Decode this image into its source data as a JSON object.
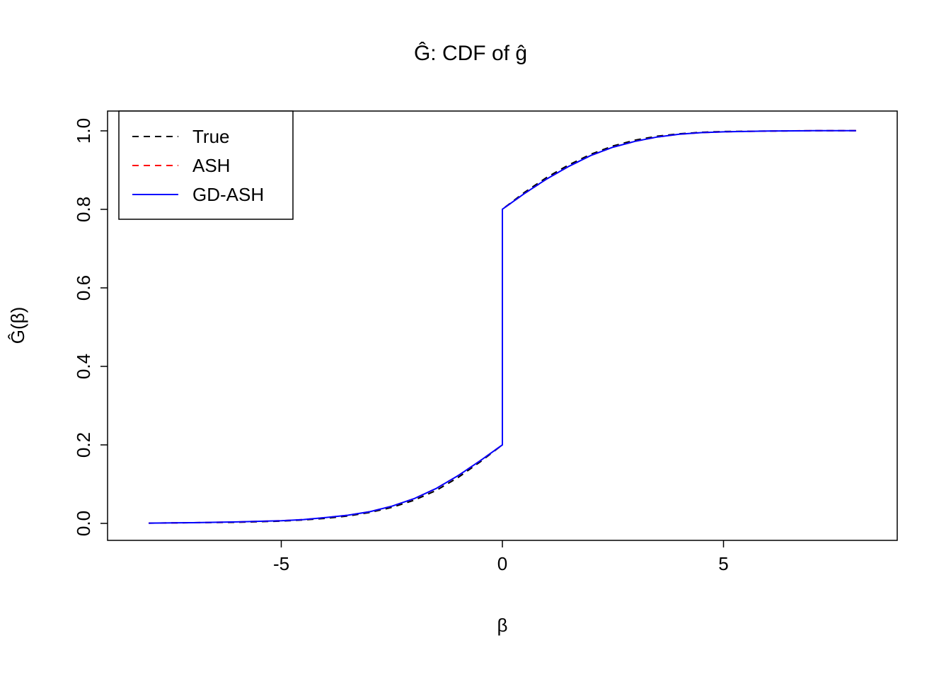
{
  "chart_data": {
    "type": "line",
    "title": "Ĝ: CDF of ĝ",
    "xlabel": "β",
    "ylabel": "Ĝ(β)",
    "xlim": [
      -8.93,
      8.93
    ],
    "ylim": [
      -0.043,
      1.05
    ],
    "grid": false,
    "axes": {
      "xtick_values": [
        -5,
        0,
        5
      ],
      "xtick_labels": [
        "-5",
        "0",
        "5"
      ],
      "ytick_values": [
        0.0,
        0.2,
        0.4,
        0.6,
        0.8,
        1.0
      ],
      "ytick_labels": [
        "0.0",
        "0.2",
        "0.4",
        "0.6",
        "0.8",
        "1.0"
      ]
    },
    "legend": {
      "position": "topleft",
      "entries": [
        {
          "label": "True",
          "color": "#000000",
          "style": "dashed"
        },
        {
          "label": "ASH",
          "color": "#FF0000",
          "style": "dashed"
        },
        {
          "label": "GD-ASH",
          "color": "#0000FF",
          "style": "solid"
        }
      ]
    },
    "series": [
      {
        "name": "True",
        "color": "#000000",
        "style": "dashed",
        "x": [
          -8,
          -7,
          -6,
          -5,
          -4.5,
          -4,
          -3.5,
          -3,
          -2.5,
          -2,
          -1.5,
          -1,
          -0.5,
          0,
          0,
          0.5,
          1,
          1.5,
          2,
          2.5,
          3,
          3.5,
          4,
          4.5,
          5,
          6,
          7,
          8
        ],
        "y": [
          0.001,
          0.002,
          0.003,
          0.006,
          0.009,
          0.013,
          0.019,
          0.028,
          0.041,
          0.059,
          0.084,
          0.117,
          0.157,
          0.2,
          0.8,
          0.843,
          0.881,
          0.913,
          0.94,
          0.961,
          0.976,
          0.986,
          0.992,
          0.996,
          0.998,
          0.999,
          1.0,
          1.0
        ]
      },
      {
        "name": "ASH",
        "color": "#FF0000",
        "style": "dashed",
        "x": [
          -8,
          -7,
          -6,
          -5,
          -4.5,
          -4,
          -3.5,
          -3,
          -2.5,
          -2,
          -1.5,
          -1,
          -0.5,
          0,
          0,
          0.5,
          1,
          1.5,
          2,
          2.5,
          3,
          3.5,
          4,
          4.5,
          5,
          6,
          7,
          8
        ],
        "y": [
          0.001,
          0.002,
          0.004,
          0.007,
          0.01,
          0.015,
          0.021,
          0.03,
          0.044,
          0.063,
          0.089,
          0.122,
          0.16,
          0.2,
          0.8,
          0.84,
          0.877,
          0.909,
          0.937,
          0.958,
          0.973,
          0.984,
          0.991,
          0.995,
          0.997,
          0.999,
          1.0,
          1.0
        ]
      },
      {
        "name": "GD-ASH",
        "color": "#0000FF",
        "style": "solid",
        "x": [
          -8,
          -7,
          -6,
          -5,
          -4.5,
          -4,
          -3.5,
          -3,
          -2.5,
          -2,
          -1.5,
          -1,
          -0.5,
          0,
          0,
          0.5,
          1,
          1.5,
          2,
          2.5,
          3,
          3.5,
          4,
          4.5,
          5,
          6,
          7,
          8
        ],
        "y": [
          0.001,
          0.002,
          0.004,
          0.007,
          0.01,
          0.015,
          0.021,
          0.03,
          0.044,
          0.063,
          0.089,
          0.122,
          0.16,
          0.2,
          0.8,
          0.84,
          0.877,
          0.909,
          0.937,
          0.958,
          0.973,
          0.984,
          0.991,
          0.995,
          0.997,
          0.999,
          1.0,
          1.0
        ]
      }
    ]
  }
}
